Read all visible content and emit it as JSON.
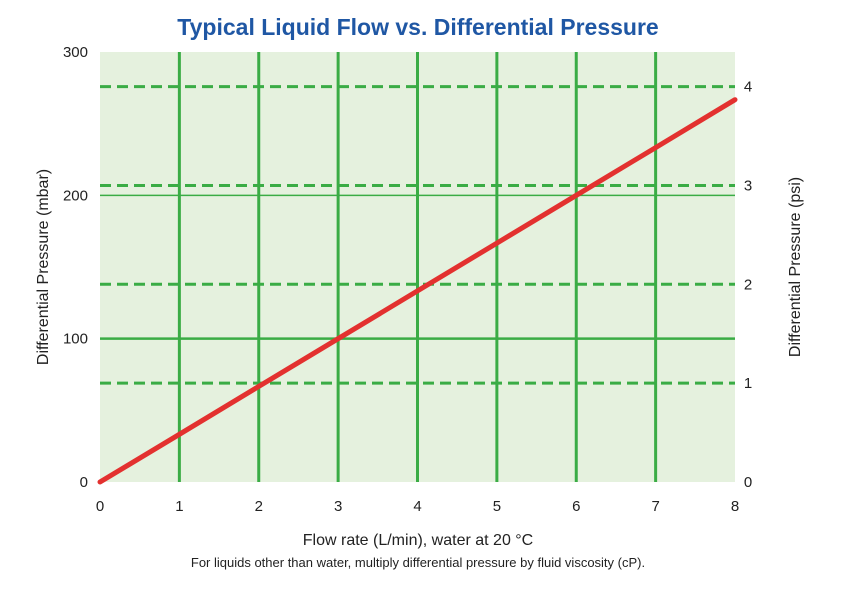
{
  "chart_data": {
    "type": "line",
    "title": "Typical Liquid Flow vs. Differential Pressure",
    "xlabel": "Flow rate (L/min), water at 20 °C",
    "ylabel": "Differential Pressure (mbar)",
    "y2label": "Differential Pressure (psi)",
    "note": "For liquids other than water, multiply differential pressure by fluid viscosity (cP).",
    "xlim": [
      0,
      8
    ],
    "ylim": [
      0,
      300
    ],
    "y2lim": [
      0,
      4.35
    ],
    "x_ticks": [
      "0",
      "1",
      "2",
      "3",
      "4",
      "5",
      "6",
      "7",
      "8"
    ],
    "y_ticks": [
      "0",
      "100",
      "200",
      "300"
    ],
    "y2_ticks": [
      "0",
      "1",
      "2",
      "3",
      "4"
    ],
    "grid": true,
    "series": [
      {
        "x": [
          0,
          1,
          2,
          3,
          4,
          5,
          6,
          7,
          8
        ],
        "y": [
          0,
          33.3,
          66.7,
          100,
          133.3,
          166.7,
          200,
          233.3,
          266.7
        ]
      }
    ],
    "colors": {
      "plot_background": "#e5f1de",
      "grid": "#3aac45",
      "line": "#e3312f",
      "title": "#1f57a4"
    }
  }
}
